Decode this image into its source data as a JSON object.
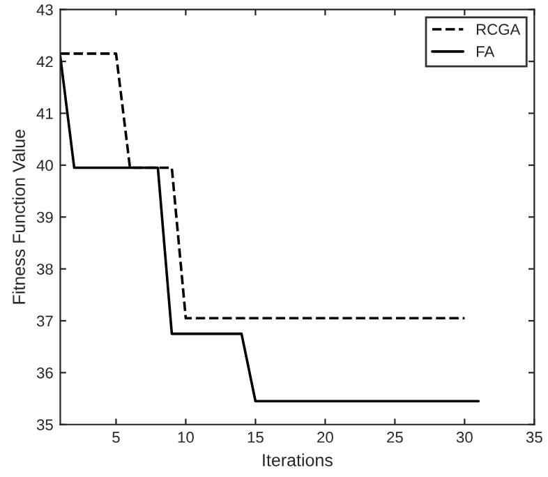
{
  "chart_data": {
    "type": "line",
    "xlabel": "Iterations",
    "ylabel": "Fitness Function Value",
    "xlim": [
      1,
      35
    ],
    "xticks": [
      5,
      10,
      15,
      20,
      25,
      30,
      35
    ],
    "ylim": [
      35,
      43
    ],
    "yticks": [
      35,
      36,
      37,
      38,
      39,
      40,
      41,
      42,
      43
    ],
    "grid": false,
    "legend": "top right",
    "series": [
      {
        "name": "RCGA",
        "color": "#000000",
        "line_style": "dashed",
        "x": [
          1,
          5,
          6,
          9,
          10,
          30
        ],
        "values": [
          42.15,
          42.15,
          39.95,
          39.95,
          37.05,
          37.05
        ]
      },
      {
        "name": "FA",
        "color": "#000000",
        "line_style": "solid",
        "x": [
          1,
          2,
          8,
          9,
          14,
          15,
          31
        ],
        "values": [
          42.1,
          39.95,
          39.95,
          36.75,
          36.75,
          35.45,
          35.45
        ]
      }
    ]
  }
}
